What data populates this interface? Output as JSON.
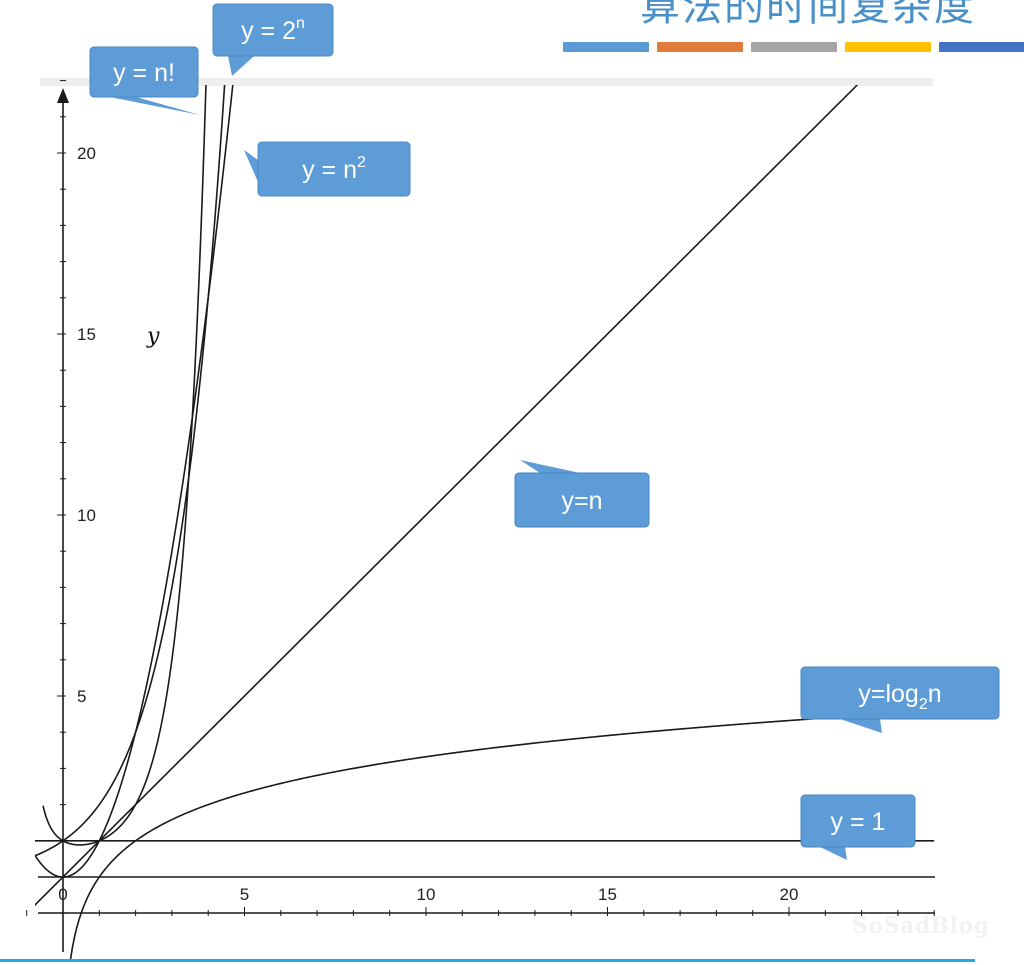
{
  "header": {
    "title": "算法的时间复杂度",
    "bar_colors": [
      "#5b9bd5",
      "#e07b39",
      "#a5a5a5",
      "#ffc000",
      "#4472c4"
    ]
  },
  "watermark": "SoSadBlog",
  "chart_data": {
    "type": "line",
    "title": "",
    "xlabel": "",
    "ylabel": "y",
    "xlim": [
      -1.4,
      24
    ],
    "ylim": [
      -2.5,
      22.5
    ],
    "x_ticks": [
      0,
      5,
      10,
      15,
      20
    ],
    "y_ticks": [
      5,
      10,
      15,
      20
    ],
    "grid": false,
    "curve_color": "#1a1a1a",
    "label_color": "#5d9cd7",
    "series": [
      {
        "name": "y = n!",
        "function": "factorial"
      },
      {
        "name": "y = 2",
        "superscript": "n",
        "function": "exp2"
      },
      {
        "name": "y = n",
        "superscript": "2",
        "function": "square"
      },
      {
        "name": "y=n",
        "function": "linear"
      },
      {
        "name": "y=log",
        "subscript": "2",
        "suffix": "n",
        "function": "log2"
      },
      {
        "name": "y = 1",
        "function": "constant"
      }
    ]
  }
}
